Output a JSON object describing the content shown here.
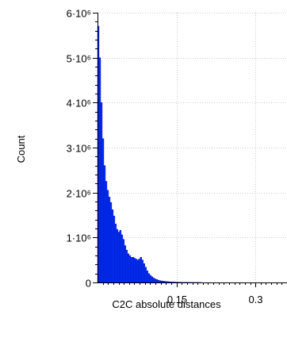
{
  "chart_data": {
    "type": "bar",
    "title": "",
    "xlabel": "C2C absolute distances",
    "ylabel": "Count",
    "ylim": [
      0,
      6000000
    ],
    "xlim": [
      0.0,
      0.36
    ],
    "y_ticks": [
      {
        "value": 0,
        "label": "0"
      },
      {
        "value": 1000000,
        "label": "1·10⁶"
      },
      {
        "value": 2000000,
        "label": "2·10⁶"
      },
      {
        "value": 3000000,
        "label": "3·10⁶"
      },
      {
        "value": 4000000,
        "label": "4·10⁶"
      },
      {
        "value": 5000000,
        "label": "5·10⁶"
      },
      {
        "value": 6000000,
        "label": "6·10⁶"
      }
    ],
    "x_ticks": [
      {
        "value": 0.15,
        "label": "0.15"
      },
      {
        "value": 0.3,
        "label": "0.3"
      }
    ],
    "grid": true,
    "bin_width": 0.003,
    "x": [
      0.0015,
      0.0045,
      0.0075,
      0.0105,
      0.0135,
      0.0165,
      0.0195,
      0.0225,
      0.0255,
      0.0285,
      0.0315,
      0.0345,
      0.0375,
      0.0405,
      0.0435,
      0.0465,
      0.0495,
      0.0525,
      0.0555,
      0.0585,
      0.0615,
      0.0645,
      0.0675,
      0.0705,
      0.0735,
      0.0765,
      0.0795,
      0.0825,
      0.0855,
      0.0885,
      0.0915,
      0.0945,
      0.0975,
      0.1005,
      0.1035,
      0.1065,
      0.1095,
      0.1125,
      0.1155,
      0.1185,
      0.1215,
      0.1245,
      0.1275,
      0.1305,
      0.1335,
      0.1365,
      0.1395,
      0.1425,
      0.1455,
      0.1485,
      0.1515,
      0.1545,
      0.1575,
      0.1605,
      0.1635,
      0.1665,
      0.1695,
      0.1725,
      0.1755,
      0.1785,
      0.1815,
      0.1845,
      0.1875,
      0.1905,
      0.1935,
      0.1965
    ],
    "values": [
      5700000,
      5000000,
      4000000,
      3200000,
      2600000,
      2250000,
      2050000,
      1900000,
      1780000,
      1620000,
      1480000,
      1300000,
      1180000,
      1120000,
      1160000,
      1060000,
      960000,
      820000,
      720000,
      640000,
      600000,
      560000,
      560000,
      540000,
      520000,
      500000,
      520000,
      560000,
      500000,
      420000,
      340000,
      260000,
      200000,
      160000,
      130000,
      100000,
      80000,
      65000,
      52000,
      42000,
      35000,
      30000,
      26000,
      22000,
      19000,
      16000,
      14000,
      12000,
      10000,
      9000,
      8000,
      7000,
      6000,
      5000,
      4500,
      4000,
      3500,
      3000,
      2500,
      2000,
      1800,
      1500,
      1200,
      1000,
      800,
      600
    ],
    "bar_color": "#0033ee",
    "bar_edge_color": "#0000c8"
  }
}
